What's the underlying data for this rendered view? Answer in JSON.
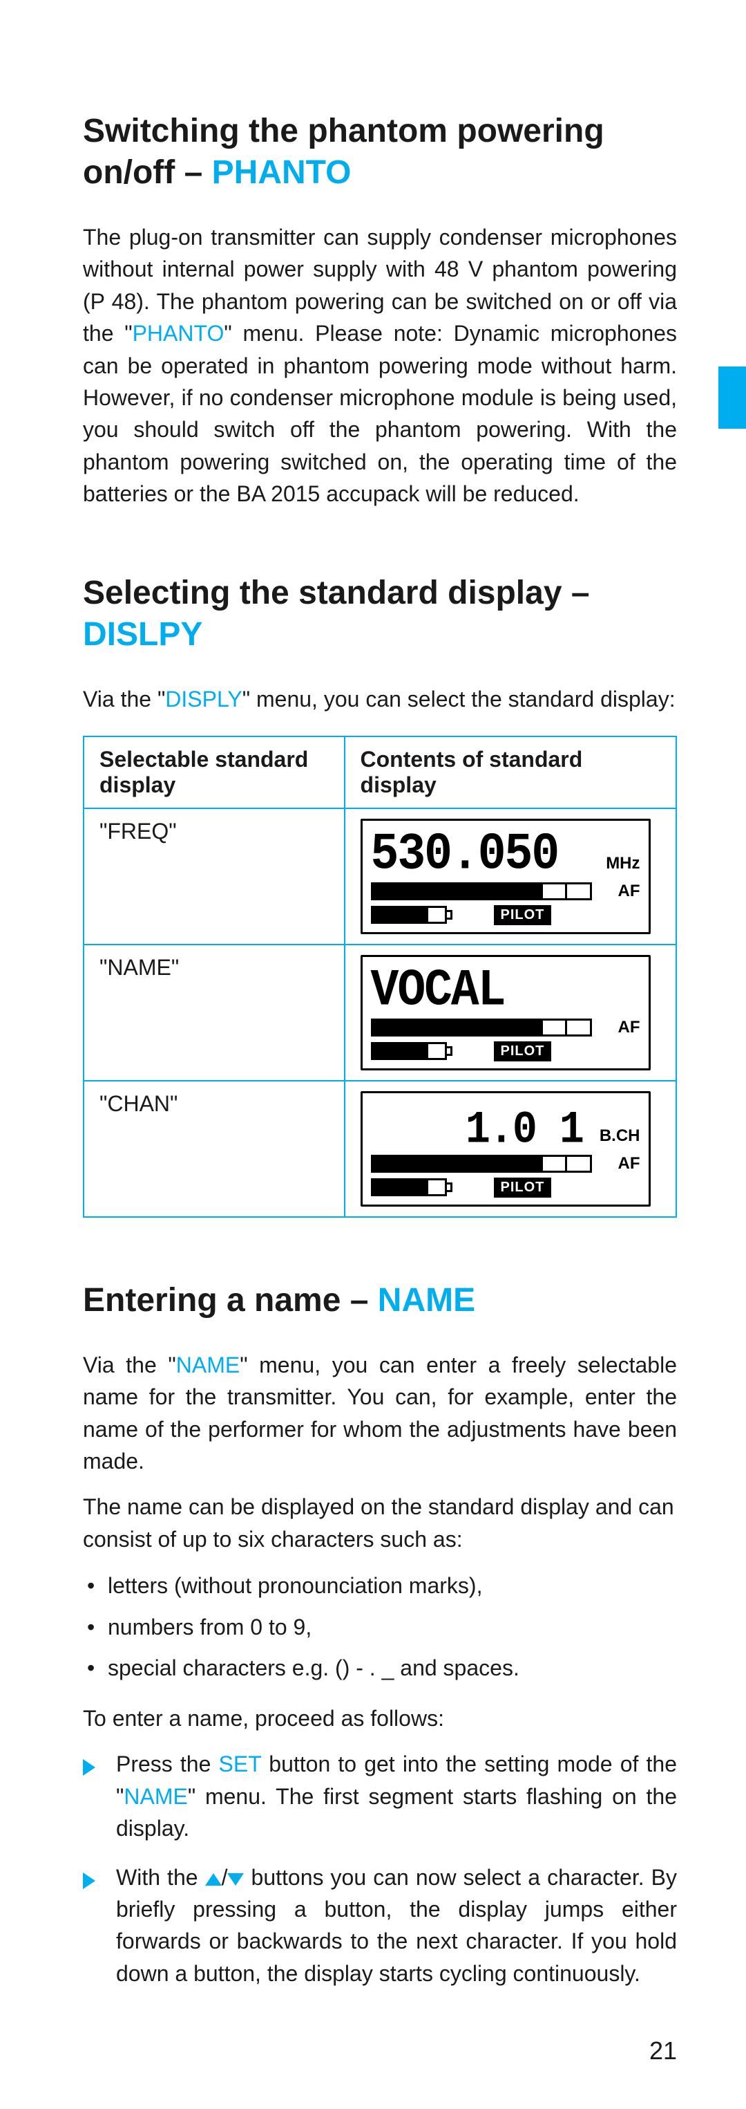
{
  "colors": {
    "accent": "#00aeef",
    "text": "#1a1a1a",
    "background": "#ffffff",
    "lcd_border": "#000000"
  },
  "typography": {
    "heading_fontsize_pt": 36,
    "body_fontsize_pt": 24,
    "body_lineheight": 1.45
  },
  "page_number": "21",
  "section_phanto": {
    "heading_pre": "Switching the phantom powering on/off – ",
    "heading_accent": "PHANTO",
    "para_pre": "The plug-on transmitter can supply condenser microphones without internal power supply with 48 V phantom powering (P 48). The phantom powering can be switched on or off via the \"",
    "para_accent": "PHANTO",
    "para_post": "\" menu. Please note: Dynamic microphones can be operated in phantom powering mode without harm. However, if no condenser microphone module is being used, you should switch off the phantom powering. With the phantom powering switched on, the operating time of the batteries or the BA 2015 accupack will be reduced."
  },
  "section_dislpy": {
    "heading_pre": "Selecting the standard display – ",
    "heading_accent": "DISLPY",
    "intro_pre": "Via the \"",
    "intro_accent": "DISPLY",
    "intro_post": "\" menu, you can select the standard display:",
    "table": {
      "col1_header": "Selectable standard display",
      "col2_header": "Contents of standard display",
      "rows": [
        {
          "label": "\"FREQ\"",
          "lcd": {
            "main": "530.050",
            "unit": "MHz",
            "af": "AF",
            "pilot": "PILOT",
            "bar_fill": 7,
            "bar_total": 9,
            "batt_fill": 3,
            "batt_total": 4
          }
        },
        {
          "label": "\"NAME\"",
          "lcd": {
            "main": "VOCAL",
            "unit": "",
            "af": "AF",
            "pilot": "PILOT",
            "bar_fill": 7,
            "bar_total": 9,
            "batt_fill": 3,
            "batt_total": 4
          }
        },
        {
          "label": "\"CHAN\"",
          "lcd": {
            "main": "1.0 1",
            "unit": "B.CH",
            "af": "AF",
            "pilot": "PILOT",
            "bar_fill": 7,
            "bar_total": 9,
            "batt_fill": 3,
            "batt_total": 4
          }
        }
      ]
    }
  },
  "section_name": {
    "heading_pre": "Entering a name – ",
    "heading_accent": "NAME",
    "p1_pre": "Via the \"",
    "p1_accent": "NAME",
    "p1_post": "\" menu, you can enter a freely selectable name for the transmitter. You can, for example, enter the name of the performer for whom the adjustments have been made.",
    "p2": "The name can be displayed on the standard display and can consist of up to six characters such as:",
    "bullets": [
      "letters (without pronounciation marks),",
      "numbers from 0 to 9,",
      "special characters e.g. () - . _ and spaces."
    ],
    "p3": "To enter a name, proceed as follows:",
    "step1_pre": "Press the ",
    "step1_set": "SET",
    "step1_mid": " button to get into the setting mode of the \"",
    "step1_name": "NAME",
    "step1_post": "\" menu. The first segment starts flashing on the display.",
    "step2_pre": "With the ",
    "step2_slash": "/",
    "step2_post": " buttons you can now select a character. By briefly pressing a button, the display jumps either forwards or backwards to the next character. If you hold down a button, the display starts cycling continuously."
  }
}
